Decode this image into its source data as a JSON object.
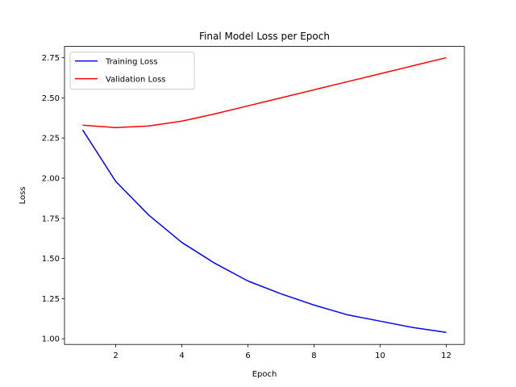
{
  "chart_data": {
    "type": "line",
    "title": "Final Model Loss per Epoch",
    "xlabel": "Epoch",
    "ylabel": "Loss",
    "x": [
      1,
      2,
      3,
      4,
      5,
      6,
      7,
      8,
      9,
      10,
      11,
      12
    ],
    "xlim": [
      0.45,
      12.55
    ],
    "ylim": [
      0.965,
      2.82
    ],
    "xticks": [
      2,
      4,
      6,
      8,
      10,
      12
    ],
    "yticks": [
      1.0,
      1.25,
      1.5,
      1.75,
      2.0,
      2.25,
      2.5,
      2.75
    ],
    "xtick_labels": [
      "2",
      "4",
      "6",
      "8",
      "10",
      "12"
    ],
    "ytick_labels": [
      "1.00",
      "1.25",
      "1.50",
      "1.75",
      "2.00",
      "2.25",
      "2.50",
      "2.75"
    ],
    "grid": false,
    "legend_position": "top-left",
    "series": [
      {
        "name": "Training Loss",
        "color": "#0000ff",
        "values": [
          2.3,
          1.98,
          1.77,
          1.6,
          1.47,
          1.36,
          1.28,
          1.21,
          1.15,
          1.11,
          1.07,
          1.04
        ]
      },
      {
        "name": "Validation Loss",
        "color": "#ff0000",
        "values": [
          2.33,
          2.315,
          2.325,
          2.355,
          2.4,
          2.45,
          2.5,
          2.55,
          2.6,
          2.65,
          2.7,
          2.75
        ]
      }
    ]
  }
}
